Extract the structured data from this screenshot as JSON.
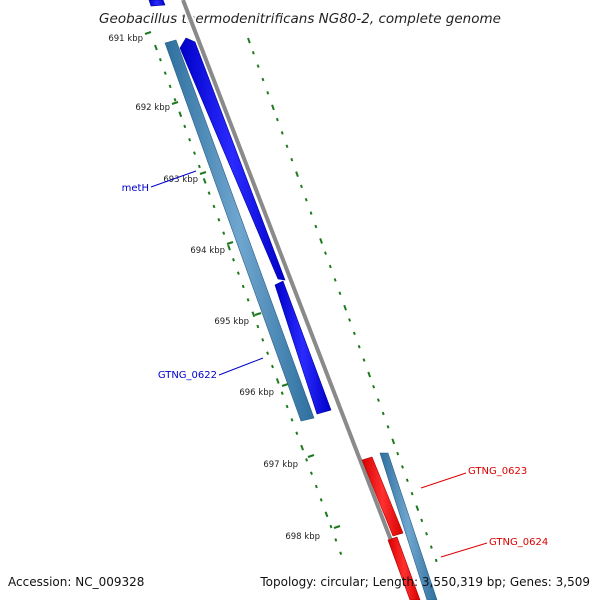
{
  "title": "Geobacillus thermodenitrificans NG80-2, complete genome",
  "footer": {
    "accession": "Accession: NC_009328",
    "summary": "Topology: circular; Length: 3,550,319 bp; Genes: 3,509"
  },
  "colors": {
    "forward_gene": "#0000ff",
    "reverse_gene": "#ff0000",
    "cds": "#4a8ab8",
    "backbone": "#8a8a8a",
    "ticks": "#1f7a1f",
    "label_forward": "#0000cc",
    "label_reverse": "#dd0000"
  },
  "ticks": [
    {
      "label": "691 kbp"
    },
    {
      "label": "692 kbp"
    },
    {
      "label": "693 kbp"
    },
    {
      "label": "694 kbp"
    },
    {
      "label": "695 kbp"
    },
    {
      "label": "696 kbp"
    },
    {
      "label": "697 kbp"
    },
    {
      "label": "698 kbp"
    }
  ],
  "genes": [
    {
      "name": "metH",
      "strand": "forward"
    },
    {
      "name": "GTNG_0622",
      "strand": "forward"
    },
    {
      "name": "GTNG_0623",
      "strand": "reverse"
    },
    {
      "name": "GTNG_0624",
      "strand": "reverse"
    }
  ]
}
